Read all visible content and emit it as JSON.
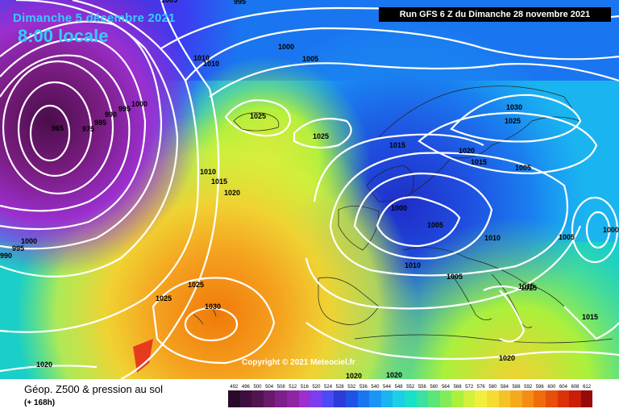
{
  "header": {
    "date": "Dimanche 5 décembre 2021",
    "time": "8:00 locale",
    "run": "Run GFS 6 Z du Dimanche 28 novembre 2021"
  },
  "copyright": "Copyright © 2021 Meteociel.fr",
  "footer": {
    "title": "Géop. Z500 & pression au sol",
    "lead": "(+ 168h)"
  },
  "scale": {
    "ticks": [
      "492",
      "496",
      "500",
      "504",
      "508",
      "512",
      "516",
      "520",
      "524",
      "528",
      "532",
      "536",
      "540",
      "544",
      "548",
      "552",
      "556",
      "560",
      "564",
      "568",
      "572",
      "576",
      "580",
      "584",
      "588",
      "592",
      "596",
      "600",
      "604",
      "608",
      "612"
    ],
    "colors": [
      "#2a0a2a",
      "#3d0f3f",
      "#50144f",
      "#6a1a6a",
      "#7d208a",
      "#9025a3",
      "#9b2fcf",
      "#7d3cf0",
      "#4b4bf5",
      "#2d3cd7",
      "#1f52e6",
      "#1a75f0",
      "#1a95f5",
      "#1ab5f0",
      "#1acfe6",
      "#1ae0c8",
      "#3ce0a0",
      "#5ae678",
      "#82eb5a",
      "#aaf03c",
      "#d2f03c",
      "#f0f03c",
      "#f5dc32",
      "#f5c328",
      "#f5aa1e",
      "#f58c14",
      "#f06e0a",
      "#e6500a",
      "#dc320a",
      "#c81e0a",
      "#960a0a"
    ]
  },
  "pressure_labels": [
    "1000",
    "1005",
    "1010",
    "1010",
    "995",
    "990",
    "985",
    "975",
    "1000",
    "965",
    "1025",
    "1025",
    "1015",
    "1020",
    "1030",
    "1025",
    "1015",
    "1005",
    "1010",
    "1015",
    "1020",
    "1000",
    "1005",
    "1010",
    "1005",
    "1000",
    "1010",
    "1005",
    "1015",
    "1015",
    "1000",
    "995",
    "990",
    "1025",
    "1030",
    "1025",
    "1020",
    "1020",
    "1020",
    "1020",
    "1015",
    "1005",
    "995"
  ]
}
